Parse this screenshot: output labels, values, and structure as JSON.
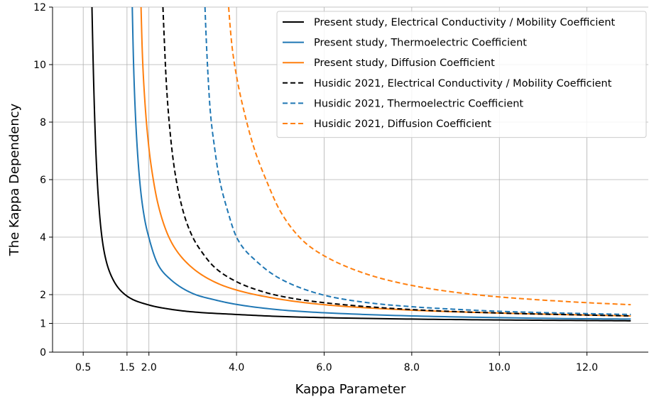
{
  "chart_data": {
    "type": "line",
    "title": "",
    "xlabel": "Kappa Parameter",
    "ylabel": "The Kappa Dependency",
    "xlim": [
      -0.2,
      13.4
    ],
    "ylim": [
      0,
      12
    ],
    "xticks": [
      0.5,
      1.5,
      2.0,
      4.0,
      6.0,
      8.0,
      10.0,
      12.0
    ],
    "xtick_labels": [
      "0.5",
      "1.5",
      "2.0",
      "4.0",
      "6.0",
      "8.0",
      "10.0",
      "12.0"
    ],
    "yticks": [
      0,
      1,
      2,
      4,
      6,
      8,
      10,
      12
    ],
    "ytick_labels": [
      "0",
      "1",
      "2",
      "4",
      "6",
      "8",
      "10",
      "12"
    ],
    "grid": true,
    "legend_position": "top-right",
    "x_range": [
      0.5,
      13.0
    ],
    "series": [
      {
        "name": "Present study, Electrical Conductivity / Mobility Coefficient",
        "color": "#000000",
        "dash": "solid",
        "x": [
          0.7,
          0.75,
          0.8,
          0.9,
          1.0,
          1.2,
          1.5,
          2.0,
          2.5,
          3.0,
          4.0,
          5.0,
          6.0,
          8.0,
          10.0,
          12.0,
          13.0
        ],
        "y": [
          12.0,
          8.75,
          6.6,
          4.36,
          3.33,
          2.47,
          1.95,
          1.64,
          1.49,
          1.4,
          1.31,
          1.24,
          1.2,
          1.15,
          1.12,
          1.1,
          1.09
        ]
      },
      {
        "name": "Present study, Thermoelectric Coefficient",
        "color": "#1f77b4",
        "dash": "solid",
        "x": [
          1.62,
          1.65,
          1.7,
          1.8,
          1.9,
          2.0,
          2.2,
          2.5,
          3.0,
          3.5,
          4.0,
          5.0,
          6.0,
          8.0,
          10.0,
          12.0,
          13.0
        ],
        "y": [
          12.0,
          10.0,
          8.0,
          5.8,
          4.65,
          3.98,
          3.07,
          2.52,
          2.04,
          1.82,
          1.66,
          1.47,
          1.37,
          1.26,
          1.2,
          1.16,
          1.15
        ]
      },
      {
        "name": "Present study, Diffusion Coefficient",
        "color": "#ff7f0e",
        "dash": "solid",
        "x": [
          1.82,
          1.85,
          1.9,
          2.0,
          2.1,
          2.2,
          2.4,
          2.6,
          3.0,
          3.5,
          4.0,
          5.0,
          6.0,
          8.0,
          10.0,
          12.0,
          13.0
        ],
        "y": [
          12.0,
          10.4,
          8.9,
          7.1,
          6.0,
          5.2,
          4.2,
          3.6,
          2.92,
          2.44,
          2.16,
          1.84,
          1.65,
          1.46,
          1.36,
          1.29,
          1.26
        ]
      },
      {
        "name": "Husidic 2021,  Electrical Conductivity / Mobility Coefficient",
        "color": "#000000",
        "dash": "dashed",
        "x": [
          2.32,
          2.35,
          2.4,
          2.5,
          2.6,
          2.8,
          3.0,
          3.2,
          3.5,
          4.0,
          4.5,
          5.0,
          6.0,
          8.0,
          10.0,
          12.0,
          13.0
        ],
        "y": [
          12.0,
          10.9,
          9.3,
          7.4,
          6.2,
          4.8,
          4.0,
          3.5,
          2.95,
          2.45,
          2.15,
          1.95,
          1.72,
          1.48,
          1.36,
          1.29,
          1.26
        ]
      },
      {
        "name": "Husidic 2021,  Thermoelectric Coefficient",
        "color": "#1f77b4",
        "dash": "dashed",
        "x": [
          3.28,
          3.3,
          3.35,
          3.4,
          3.5,
          3.6,
          3.8,
          4.0,
          4.5,
          5.0,
          6.0,
          7.0,
          8.0,
          9.0,
          10.0,
          12.0,
          13.0
        ],
        "y": [
          12.0,
          11.2,
          9.6,
          8.4,
          7.1,
          6.1,
          4.9,
          4.0,
          3.1,
          2.55,
          1.98,
          1.72,
          1.58,
          1.49,
          1.42,
          1.34,
          1.31
        ]
      },
      {
        "name": "Husidic 2021,  Diffusion Coefficient",
        "color": "#ff7f0e",
        "dash": "dashed",
        "x": [
          3.82,
          3.85,
          3.9,
          4.0,
          4.2,
          4.4,
          4.7,
          5.0,
          5.5,
          6.0,
          7.0,
          8.0,
          9.0,
          10.0,
          11.0,
          12.0,
          13.0
        ],
        "y": [
          12.0,
          11.4,
          10.6,
          9.6,
          8.2,
          7.1,
          5.9,
          4.9,
          3.9,
          3.35,
          2.7,
          2.32,
          2.08,
          1.92,
          1.81,
          1.72,
          1.65
        ]
      }
    ]
  }
}
